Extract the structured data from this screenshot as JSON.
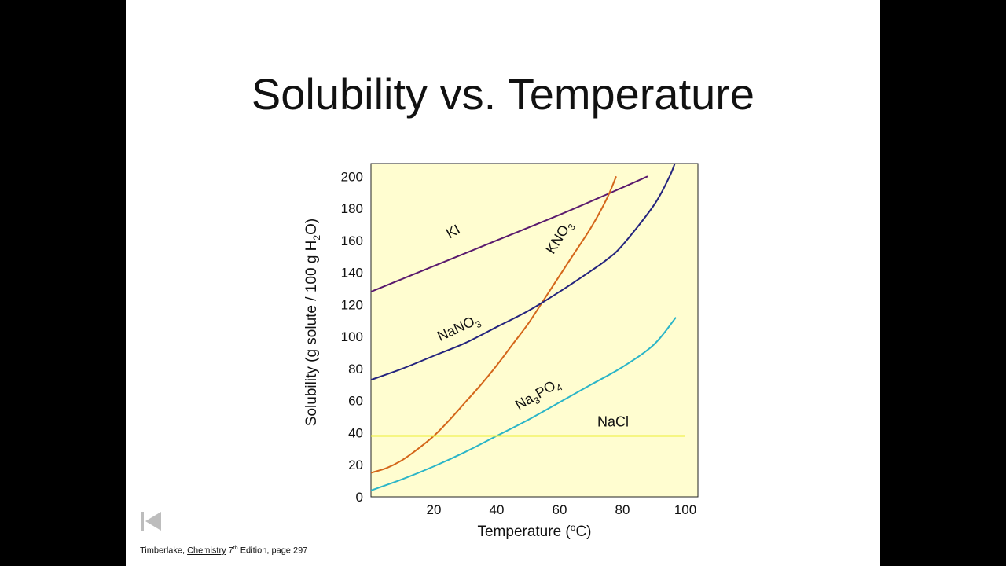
{
  "slide": {
    "title": "Solubility vs. Temperature",
    "citation": {
      "author": "Timberlake, ",
      "book": "Chemistry",
      "edition_num": " 7",
      "edition_sup": "th",
      "rest": " Edition, page 297"
    }
  },
  "icons": {
    "nav_back": "skip-back-icon"
  },
  "colors": {
    "plot_bg": "#fffdd0",
    "KI": "#5a1a6e",
    "KNO3": "#d4661a",
    "NaNO3": "#24247e",
    "Na3PO4": "#2bb5c8",
    "NaCl": "#eeee33"
  },
  "chart_data": {
    "type": "line",
    "title": "Solubility vs. Temperature",
    "xlabel": {
      "pre": "Temperature (",
      "sup": "o",
      "post": "C)"
    },
    "ylabel": {
      "pre": "Solubility (g solute / 100 g H",
      "sub": "2",
      "post": "O)"
    },
    "xlim": [
      0,
      104
    ],
    "ylim": [
      0,
      208
    ],
    "xticks": [
      20,
      40,
      60,
      80,
      100
    ],
    "yticks": [
      0,
      20,
      40,
      60,
      80,
      100,
      120,
      140,
      160,
      180,
      200
    ],
    "grid": false,
    "series": [
      {
        "name": "KI",
        "label_main": "KI",
        "label_sub": "",
        "label_after": "",
        "color_key": "KI",
        "x": [
          0,
          20,
          40,
          60,
          80,
          88
        ],
        "y": [
          128,
          144,
          160,
          176,
          193,
          200
        ],
        "label_x": 25,
        "label_y": 161,
        "label_angle": -29
      },
      {
        "name": "KNO3",
        "label_main": "KNO",
        "label_sub": "3",
        "label_after": "",
        "color_key": "KNO3",
        "x": [
          0,
          5,
          10,
          15,
          20,
          25,
          30,
          35,
          40,
          45,
          50,
          55,
          60,
          65,
          70,
          75,
          78
        ],
        "y": [
          15,
          18,
          23,
          30,
          38,
          48,
          59,
          70,
          82,
          95,
          108,
          123,
          138,
          153,
          168,
          186,
          200
        ],
        "label_x": 58,
        "label_y": 151,
        "label_angle": -58
      },
      {
        "name": "NaNO3",
        "label_main": "NaNO",
        "label_sub": "3",
        "label_after": "",
        "color_key": "NaNO3",
        "x": [
          0,
          10,
          20,
          30,
          40,
          50,
          60,
          70,
          75,
          80,
          90,
          95,
          97
        ],
        "y": [
          73,
          80,
          88,
          96,
          106,
          116,
          128,
          141,
          148,
          157,
          182,
          200,
          210
        ],
        "label_x": 22,
        "label_y": 97,
        "label_angle": -25
      },
      {
        "name": "Na3PO4",
        "label_main": "Na",
        "label_sub": "3",
        "label_after": "PO",
        "label_sub2": "4",
        "color_key": "Na3PO4",
        "x": [
          0,
          10,
          20,
          30,
          40,
          50,
          60,
          70,
          80,
          90,
          97
        ],
        "y": [
          4,
          11,
          19,
          28,
          38,
          48,
          59,
          70,
          81,
          95,
          112
        ],
        "label_x": 47,
        "label_y": 54,
        "label_angle": -30
      },
      {
        "name": "NaCl",
        "label_main": "NaCl",
        "label_sub": "",
        "label_after": "",
        "color_key": "NaCl",
        "x": [
          0,
          100
        ],
        "y": [
          38,
          38
        ],
        "label_x": 72,
        "label_y": 44,
        "label_angle": 0
      }
    ]
  }
}
